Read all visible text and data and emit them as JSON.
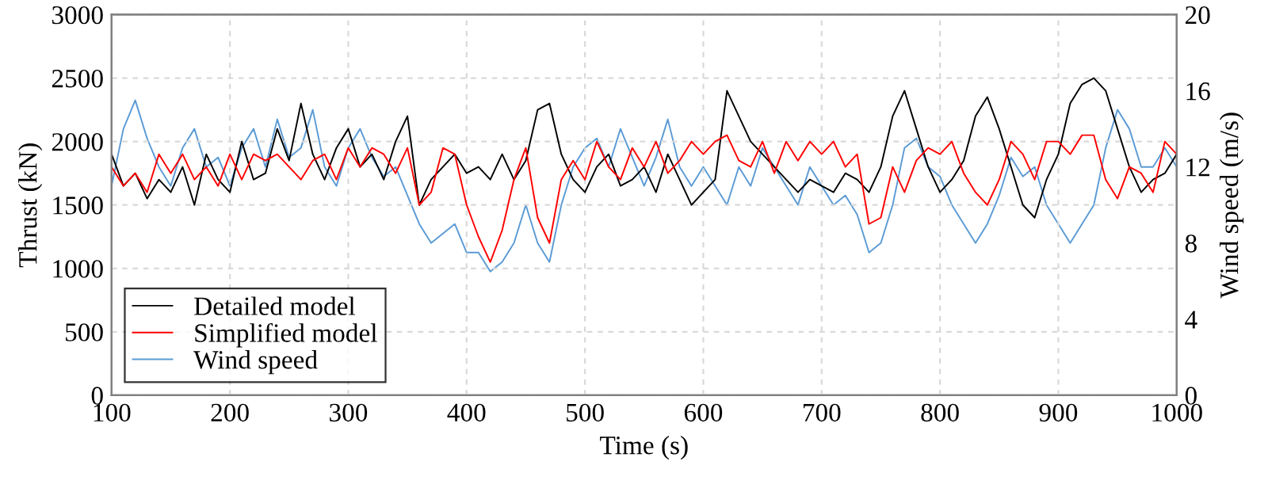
{
  "chart_data": {
    "type": "line",
    "xlabel": "Time (s)",
    "ylabel": "Thrust (kN)",
    "y2label": "Wind speed (m/s)",
    "x": [
      100,
      110,
      120,
      130,
      140,
      150,
      160,
      170,
      180,
      190,
      200,
      210,
      220,
      230,
      240,
      250,
      260,
      270,
      280,
      290,
      300,
      310,
      320,
      330,
      340,
      350,
      360,
      370,
      380,
      390,
      400,
      410,
      420,
      430,
      440,
      450,
      460,
      470,
      480,
      490,
      500,
      510,
      520,
      530,
      540,
      550,
      560,
      570,
      580,
      590,
      600,
      610,
      620,
      630,
      640,
      650,
      660,
      670,
      680,
      690,
      700,
      710,
      720,
      730,
      740,
      750,
      760,
      770,
      780,
      790,
      800,
      810,
      820,
      830,
      840,
      850,
      860,
      870,
      880,
      890,
      900,
      910,
      920,
      930,
      940,
      950,
      960,
      970,
      980,
      990,
      1000
    ],
    "series": [
      {
        "name": "Detailed model",
        "color": "#000000",
        "values": [
          1900,
          1650,
          1750,
          1550,
          1700,
          1600,
          1800,
          1500,
          1900,
          1700,
          1600,
          2000,
          1700,
          1750,
          2100,
          1850,
          2300,
          1900,
          1700,
          1950,
          2100,
          1800,
          1900,
          1700,
          2000,
          2200,
          1500,
          1700,
          1800,
          1900,
          1750,
          1800,
          1700,
          1900,
          1700,
          1850,
          2250,
          2300,
          1900,
          1700,
          1600,
          1800,
          1900,
          1650,
          1700,
          1800,
          1600,
          1900,
          1700,
          1500,
          1600,
          1700,
          2400,
          2200,
          2000,
          1900,
          1800,
          1700,
          1600,
          1700,
          1650,
          1600,
          1750,
          1700,
          1600,
          1800,
          2200,
          2400,
          2100,
          1800,
          1600,
          1700,
          1850,
          2200,
          2350,
          2100,
          1800,
          1500,
          1400,
          1700,
          1900,
          2300,
          2450,
          2500,
          2400,
          2100,
          1800,
          1600,
          1700,
          1750,
          1900
        ]
      },
      {
        "name": "Simplified model",
        "color": "#ff0000",
        "values": [
          1800,
          1650,
          1750,
          1600,
          1900,
          1750,
          1900,
          1700,
          1800,
          1650,
          1900,
          1700,
          1900,
          1850,
          1900,
          1800,
          1700,
          1850,
          1900,
          1700,
          1950,
          1800,
          1950,
          1900,
          1750,
          1950,
          1500,
          1600,
          1950,
          1900,
          1500,
          1250,
          1050,
          1300,
          1700,
          1950,
          1400,
          1200,
          1700,
          1850,
          1700,
          2000,
          1800,
          1700,
          1950,
          1800,
          2000,
          1750,
          1850,
          2000,
          1900,
          2000,
          2050,
          1850,
          1800,
          2000,
          1750,
          2000,
          1850,
          2000,
          1900,
          2000,
          1800,
          1900,
          1350,
          1400,
          1800,
          1600,
          1850,
          1950,
          1900,
          2000,
          1750,
          1600,
          1500,
          1700,
          2000,
          1900,
          1700,
          2000,
          2000,
          1900,
          2050,
          2050,
          1700,
          1550,
          1800,
          1750,
          1600,
          2000,
          1900
        ]
      },
      {
        "name": "Wind speed",
        "color": "#5b9bd5",
        "axis": "y2",
        "values": [
          11,
          14,
          15.5,
          13.5,
          12,
          11,
          13,
          14,
          12,
          12.5,
          11,
          13,
          14,
          12,
          14.5,
          12.5,
          13,
          15,
          12,
          11,
          13,
          14,
          12.5,
          11.5,
          12,
          10.5,
          9,
          8,
          8.5,
          9,
          7.5,
          7.5,
          6.5,
          7,
          8,
          10,
          8,
          7,
          10,
          12,
          13,
          13.5,
          12,
          14,
          12.5,
          11,
          12.5,
          14.5,
          12,
          11,
          12,
          11,
          10,
          12,
          11,
          13,
          12,
          11,
          10,
          12,
          11,
          10,
          10.5,
          9.5,
          7.5,
          8,
          10,
          13,
          13.5,
          12,
          11.5,
          10,
          9,
          8,
          9,
          10.5,
          12.5,
          11.5,
          12,
          10,
          9,
          8,
          9,
          10,
          13,
          15,
          14,
          12,
          12,
          13,
          12
        ]
      }
    ],
    "xlim": [
      100,
      1000
    ],
    "xticks": [
      100,
      200,
      300,
      400,
      500,
      600,
      700,
      800,
      900,
      1000
    ],
    "ylim": [
      0,
      3000
    ],
    "yticks": [
      0,
      500,
      1000,
      1500,
      2000,
      2500,
      3000
    ],
    "y2lim": [
      0,
      20
    ],
    "y2ticks": [
      0,
      4,
      8,
      12,
      16,
      20
    ],
    "grid": true,
    "legend": "bottom left"
  }
}
